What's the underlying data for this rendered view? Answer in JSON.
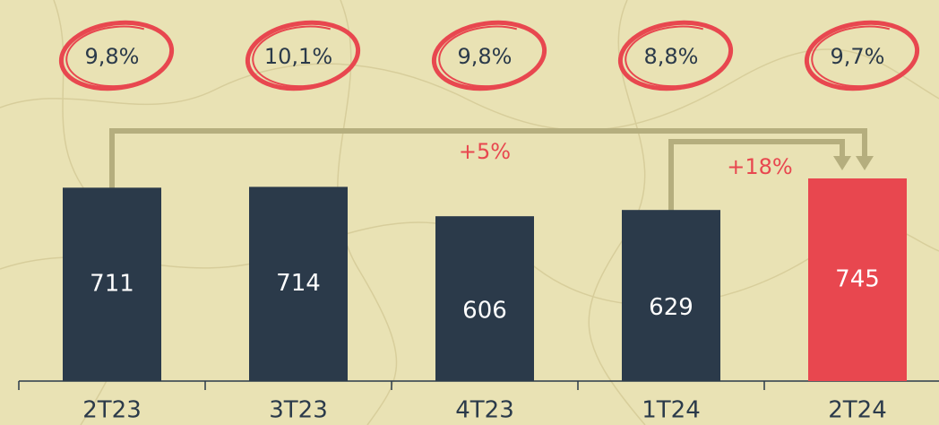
{
  "chart_data": {
    "type": "bar",
    "categories": [
      "2T23",
      "3T23",
      "4T23",
      "1T24",
      "2T24"
    ],
    "values": [
      711,
      714,
      606,
      629,
      745
    ],
    "colors": [
      "#2b3a4a",
      "#2b3a4a",
      "#2b3a4a",
      "#2b3a4a",
      "#e8474f"
    ],
    "circled_labels": [
      "9,8%",
      "10,1%",
      "9,8%",
      "8,8%",
      "9,7%"
    ],
    "annotations": [
      "+5%",
      "+18%"
    ]
  }
}
